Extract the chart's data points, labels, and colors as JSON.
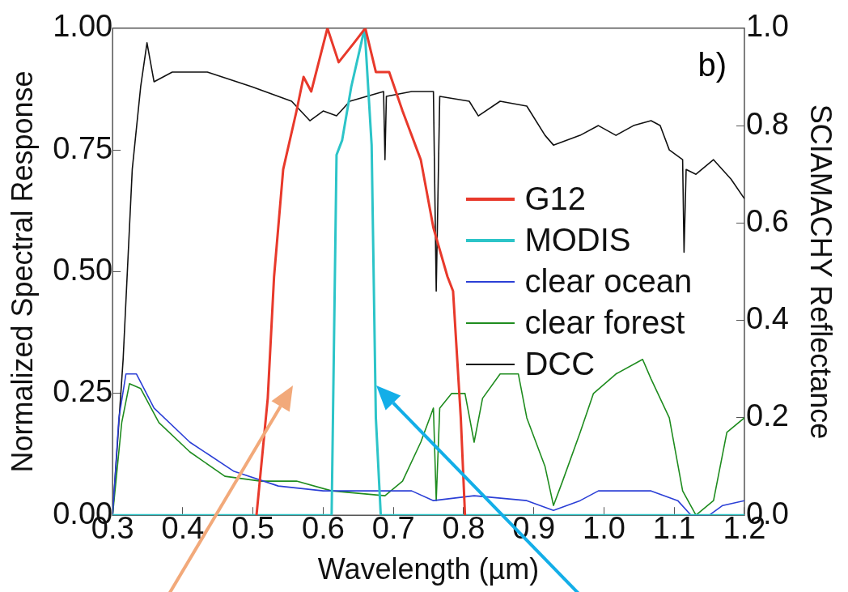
{
  "chart_data": {
    "type": "line",
    "xlabel": "Wavelength (µm)",
    "ylabel": "Normalized Spectral Response",
    "y2label": "SCIAMACHY Reflectance",
    "annotations": [
      "b)"
    ],
    "xlim": [
      0.3,
      1.2
    ],
    "xticks": [
      0.3,
      0.4,
      0.5,
      0.6,
      0.7,
      0.8,
      0.9,
      {
        "value": 1,
        "label": "1.0"
      },
      1.1,
      1.2
    ],
    "ylim": [
      0,
      1
    ],
    "yticks": [
      {
        "value": 0,
        "label": "0.00"
      },
      {
        "value": 0.25,
        "label": "0.25"
      },
      {
        "value": 0.5,
        "label": "0.50"
      },
      {
        "value": 0.75,
        "label": "0.75"
      },
      {
        "value": 1,
        "label": "1.00"
      }
    ],
    "y2lim": [
      0,
      1
    ],
    "y2ticks": [
      {
        "value": 0,
        "label": "0.0"
      },
      {
        "value": 0.2,
        "label": "0.2"
      },
      {
        "value": 0.4,
        "label": "0.4"
      },
      {
        "value": 0.6,
        "label": "0.6"
      },
      {
        "value": 0.8,
        "label": "0.8"
      },
      {
        "value": 1,
        "label": "1.0"
      }
    ],
    "legend": "right",
    "grid": false,
    "marker": "none",
    "series": [
      {
        "name": "G12",
        "color": "#e8392b",
        "x": [
          0.505,
          0.521,
          0.53,
          0.543,
          0.562,
          0.572,
          0.583,
          0.606,
          0.622,
          0.644,
          0.66,
          0.675,
          0.694,
          0.713,
          0.739,
          0.757,
          0.777,
          0.785,
          0.796,
          0.802
        ],
        "values": [
          0,
          0.24,
          0.49,
          0.71,
          0.83,
          0.9,
          0.87,
          1.0,
          0.93,
          0.97,
          1.0,
          0.91,
          0.91,
          0.83,
          0.73,
          0.59,
          0.49,
          0.46,
          0.2,
          0
        ]
      },
      {
        "name": "MODIS",
        "color": "#2cc4c8",
        "x": [
          0.3,
          0.612,
          0.619,
          0.627,
          0.64,
          0.659,
          0.669,
          0.675,
          0.682,
          1.2
        ],
        "values": [
          0,
          0,
          0.74,
          0.77,
          0.88,
          1.0,
          0.76,
          0.2,
          0,
          0
        ]
      },
      {
        "name": "clear ocean",
        "color": "#2b3fd6",
        "axis": "y2",
        "x": [
          0.3,
          0.309,
          0.319,
          0.334,
          0.359,
          0.41,
          0.473,
          0.536,
          0.6,
          0.675,
          0.726,
          0.757,
          0.815,
          0.89,
          0.928,
          0.966,
          0.992,
          1.067,
          1.105,
          1.124,
          1.15,
          1.169,
          1.2
        ],
        "values": [
          0,
          0.2,
          0.29,
          0.29,
          0.22,
          0.15,
          0.09,
          0.06,
          0.05,
          0.05,
          0.05,
          0.03,
          0.04,
          0.03,
          0.01,
          0.03,
          0.05,
          0.05,
          0.03,
          0.0,
          0.0,
          0.02,
          0.03
        ]
      },
      {
        "name": "clear forest",
        "color": "#1f8c1f",
        "axis": "y2",
        "x": [
          0.3,
          0.313,
          0.324,
          0.34,
          0.366,
          0.41,
          0.46,
          0.511,
          0.562,
          0.612,
          0.688,
          0.713,
          0.739,
          0.757,
          0.761,
          0.766,
          0.783,
          0.802,
          0.815,
          0.827,
          0.852,
          0.878,
          0.89,
          0.916,
          0.928,
          0.941,
          0.966,
          0.985,
          1.017,
          1.055,
          1.067,
          1.093,
          1.112,
          1.131,
          1.156,
          1.175,
          1.2
        ],
        "values": [
          0,
          0.19,
          0.27,
          0.26,
          0.19,
          0.13,
          0.08,
          0.07,
          0.07,
          0.05,
          0.04,
          0.07,
          0.15,
          0.22,
          0.03,
          0.22,
          0.25,
          0.25,
          0.15,
          0.24,
          0.29,
          0.29,
          0.2,
          0.1,
          0.02,
          0.07,
          0.17,
          0.25,
          0.29,
          0.32,
          0.28,
          0.2,
          0.05,
          0.0,
          0.03,
          0.17,
          0.2
        ]
      },
      {
        "name": "DCC",
        "color": "#111111",
        "axis": "y2",
        "x": [
          0.3,
          0.315,
          0.328,
          0.34,
          0.349,
          0.359,
          0.385,
          0.435,
          0.498,
          0.555,
          0.581,
          0.6,
          0.619,
          0.638,
          0.686,
          0.688,
          0.69,
          0.726,
          0.757,
          0.761,
          0.766,
          0.808,
          0.821,
          0.852,
          0.89,
          0.916,
          0.928,
          0.966,
          0.992,
          1.017,
          1.042,
          1.067,
          1.08,
          1.093,
          1.112,
          1.114,
          1.117,
          1.131,
          1.156,
          1.181,
          1.2
        ],
        "values": [
          0,
          0.32,
          0.71,
          0.88,
          0.97,
          0.89,
          0.91,
          0.91,
          0.88,
          0.85,
          0.81,
          0.83,
          0.82,
          0.85,
          0.87,
          0.73,
          0.86,
          0.87,
          0.87,
          0.46,
          0.86,
          0.85,
          0.82,
          0.85,
          0.84,
          0.78,
          0.76,
          0.78,
          0.8,
          0.78,
          0.8,
          0.81,
          0.8,
          0.75,
          0.73,
          0.54,
          0.71,
          0.7,
          0.73,
          0.69,
          0.65
        ]
      }
    ]
  }
}
